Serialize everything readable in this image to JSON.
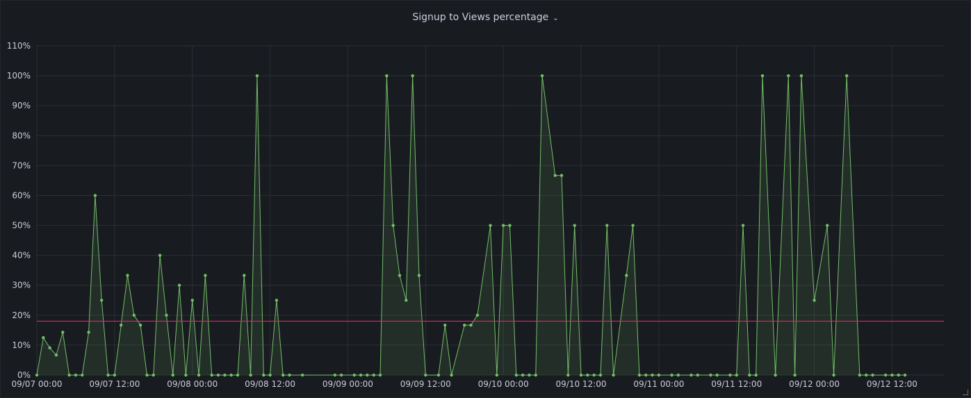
{
  "panel": {
    "title": "Signup to Views percentage",
    "menu_icon": "chevron-down-icon"
  },
  "chart_data": {
    "type": "area",
    "title": "Signup to Views percentage",
    "xlabel": "",
    "ylabel": "",
    "y_unit": "%",
    "ylim": [
      0,
      110
    ],
    "yticks": [
      0,
      10,
      20,
      30,
      40,
      50,
      60,
      70,
      80,
      90,
      100,
      110
    ],
    "ytick_labels": [
      "0%",
      "10%",
      "20%",
      "30%",
      "40%",
      "50%",
      "60%",
      "70%",
      "80%",
      "90%",
      "100%",
      "110%"
    ],
    "xlim": [
      "09/07 00:00",
      "09/12 20:00"
    ],
    "xticks": [
      "09/07 00:00",
      "09/07 12:00",
      "09/08 00:00",
      "09/08 12:00",
      "09/09 00:00",
      "09/09 12:00",
      "09/10 00:00",
      "09/10 12:00",
      "09/11 00:00",
      "09/11 12:00",
      "09/12 00:00",
      "09/12 12:00"
    ],
    "grid": true,
    "threshold": {
      "value": 18,
      "color": "#e0226e"
    },
    "series": [
      {
        "color": "#73bf69",
        "points": [
          [
            "09/07 00:00",
            0
          ],
          [
            "09/07 01:00",
            12.5
          ],
          [
            "09/07 02:00",
            9.1
          ],
          [
            "09/07 03:00",
            6.7
          ],
          [
            "09/07 04:00",
            14.3
          ],
          [
            "09/07 05:00",
            0
          ],
          [
            "09/07 06:00",
            0
          ],
          [
            "09/07 07:00",
            0
          ],
          [
            "09/07 08:00",
            14.3
          ],
          [
            "09/07 09:00",
            60
          ],
          [
            "09/07 10:00",
            25
          ],
          [
            "09/07 11:00",
            0
          ],
          [
            "09/07 12:00",
            0
          ],
          [
            "09/07 13:00",
            16.7
          ],
          [
            "09/07 14:00",
            33.3
          ],
          [
            "09/07 15:00",
            20
          ],
          [
            "09/07 16:00",
            16.7
          ],
          [
            "09/07 17:00",
            0
          ],
          [
            "09/07 18:00",
            0
          ],
          [
            "09/07 19:00",
            40
          ],
          [
            "09/07 20:00",
            20
          ],
          [
            "09/07 21:00",
            0
          ],
          [
            "09/07 22:00",
            30
          ],
          [
            "09/07 23:00",
            0
          ],
          [
            "09/08 00:00",
            25
          ],
          [
            "09/08 01:00",
            0
          ],
          [
            "09/08 02:00",
            33.3
          ],
          [
            "09/08 03:00",
            0
          ],
          [
            "09/08 04:00",
            0
          ],
          [
            "09/08 05:00",
            0
          ],
          [
            "09/08 06:00",
            0
          ],
          [
            "09/08 07:00",
            0
          ],
          [
            "09/08 08:00",
            33.3
          ],
          [
            "09/08 09:00",
            0
          ],
          [
            "09/08 10:00",
            100
          ],
          [
            "09/08 11:00",
            0
          ],
          [
            "09/08 12:00",
            0
          ],
          [
            "09/08 13:00",
            25
          ],
          [
            "09/08 14:00",
            0
          ],
          [
            "09/08 15:00",
            0
          ],
          [
            "09/08 17:00",
            0
          ],
          [
            "09/08 22:00",
            0
          ],
          [
            "09/08 23:00",
            0
          ],
          [
            "09/09 01:00",
            0
          ],
          [
            "09/09 02:00",
            0
          ],
          [
            "09/09 03:00",
            0
          ],
          [
            "09/09 04:00",
            0
          ],
          [
            "09/09 05:00",
            0
          ],
          [
            "09/09 06:00",
            100
          ],
          [
            "09/09 07:00",
            50
          ],
          [
            "09/09 08:00",
            33.3
          ],
          [
            "09/09 09:00",
            25
          ],
          [
            "09/09 10:00",
            100
          ],
          [
            "09/09 11:00",
            33.3
          ],
          [
            "09/09 12:00",
            0
          ],
          [
            "09/09 14:00",
            0
          ],
          [
            "09/09 15:00",
            16.7
          ],
          [
            "09/09 16:00",
            0
          ],
          [
            "09/09 18:00",
            16.7
          ],
          [
            "09/09 19:00",
            16.7
          ],
          [
            "09/09 20:00",
            20
          ],
          [
            "09/09 22:00",
            50
          ],
          [
            "09/09 23:00",
            0
          ],
          [
            "09/10 00:00",
            50
          ],
          [
            "09/10 01:00",
            50
          ],
          [
            "09/10 02:00",
            0
          ],
          [
            "09/10 03:00",
            0
          ],
          [
            "09/10 04:00",
            0
          ],
          [
            "09/10 05:00",
            0
          ],
          [
            "09/10 06:00",
            100
          ],
          [
            "09/10 08:00",
            66.7
          ],
          [
            "09/10 09:00",
            66.7
          ],
          [
            "09/10 10:00",
            0
          ],
          [
            "09/10 11:00",
            50
          ],
          [
            "09/10 12:00",
            0
          ],
          [
            "09/10 13:00",
            0
          ],
          [
            "09/10 14:00",
            0
          ],
          [
            "09/10 15:00",
            0
          ],
          [
            "09/10 16:00",
            50
          ],
          [
            "09/10 17:00",
            0
          ],
          [
            "09/10 19:00",
            33.3
          ],
          [
            "09/10 20:00",
            50
          ],
          [
            "09/10 21:00",
            0
          ],
          [
            "09/10 22:00",
            0
          ],
          [
            "09/10 23:00",
            0
          ],
          [
            "09/11 00:00",
            0
          ],
          [
            "09/11 02:00",
            0
          ],
          [
            "09/11 03:00",
            0
          ],
          [
            "09/11 05:00",
            0
          ],
          [
            "09/11 06:00",
            0
          ],
          [
            "09/11 08:00",
            0
          ],
          [
            "09/11 09:00",
            0
          ],
          [
            "09/11 11:00",
            0
          ],
          [
            "09/11 12:00",
            0
          ],
          [
            "09/11 13:00",
            50
          ],
          [
            "09/11 14:00",
            0
          ],
          [
            "09/11 15:00",
            0
          ],
          [
            "09/11 16:00",
            100
          ],
          [
            "09/11 18:00",
            0
          ],
          [
            "09/11 20:00",
            100
          ],
          [
            "09/11 21:00",
            0
          ],
          [
            "09/11 22:00",
            100
          ],
          [
            "09/12 00:00",
            25
          ],
          [
            "09/12 02:00",
            50
          ],
          [
            "09/12 03:00",
            0
          ],
          [
            "09/12 05:00",
            100
          ],
          [
            "09/12 07:00",
            0
          ],
          [
            "09/12 08:00",
            0
          ],
          [
            "09/12 09:00",
            0
          ],
          [
            "09/12 11:00",
            0
          ],
          [
            "09/12 12:00",
            0
          ],
          [
            "09/12 13:00",
            0
          ],
          [
            "09/12 14:00",
            0
          ]
        ]
      }
    ]
  }
}
